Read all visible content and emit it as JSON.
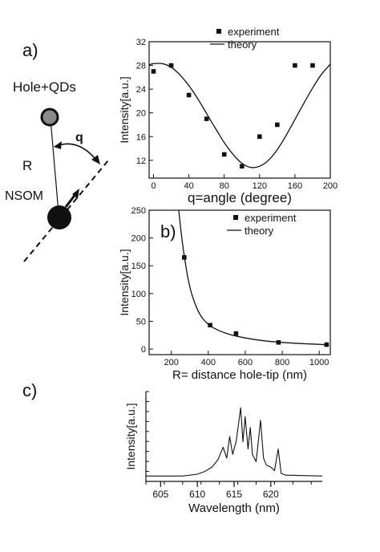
{
  "panels": {
    "a": "a)",
    "b": "b)",
    "c": "c)"
  },
  "sketch": {
    "hole_label": "Hole+QDs",
    "angle_label": "q",
    "distance_label": "R",
    "tip_label": "NSOM"
  },
  "colors": {
    "ink": "#111111",
    "hole_fill": "#8a8a8a",
    "tip_fill": "#111111"
  },
  "chart_data": [
    {
      "type": "scatter",
      "panel": "a",
      "xlabel": "q=angle (degree)",
      "ylabel": "Intensity[a.u.]",
      "xlim": [
        -5,
        200
      ],
      "ylim": [
        9,
        32
      ],
      "xticks": [
        0,
        40,
        80,
        120,
        160,
        200
      ],
      "yticks": [
        12,
        16,
        20,
        24,
        28,
        32
      ],
      "legend": [
        "experiment",
        "theory"
      ],
      "legend_position": "top-right",
      "experiment": {
        "x": [
          0,
          20,
          40,
          60,
          80,
          100,
          120,
          140,
          160,
          180
        ],
        "y": [
          27,
          28,
          23,
          19,
          13,
          11,
          16,
          18,
          28,
          28
        ]
      },
      "theory": {
        "model": "cosine",
        "x": [
          -5,
          0,
          10,
          20,
          30,
          40,
          50,
          60,
          70,
          80,
          90,
          100,
          110,
          120,
          130,
          140,
          150,
          160,
          170,
          180,
          190,
          200
        ],
        "y": [
          28.1,
          28.3,
          28.3,
          27.7,
          26.4,
          24.6,
          22.4,
          19.9,
          17.4,
          15.0,
          13.0,
          11.5,
          10.8,
          11.0,
          12.0,
          13.8,
          16.2,
          18.9,
          21.6,
          24.2,
          26.5,
          28.2
        ]
      }
    },
    {
      "type": "scatter",
      "panel": "b",
      "xlabel": "R= distance hole-tip (nm)",
      "ylabel": "Intensity[a.u.]",
      "xlim": [
        80,
        1060
      ],
      "ylim": [
        -10,
        250
      ],
      "xticks": [
        200,
        400,
        600,
        800,
        1000
      ],
      "yticks": [
        0,
        50,
        100,
        150,
        200,
        250
      ],
      "legend": [
        "experiment",
        "theory"
      ],
      "legend_position": "top-right",
      "experiment": {
        "x": [
          270,
          410,
          550,
          780,
          1040
        ],
        "y": [
          165,
          43,
          28,
          12,
          8
        ]
      },
      "theory": {
        "model": "decay",
        "x": [
          240,
          255,
          270,
          290,
          310,
          340,
          370,
          410,
          460,
          520,
          600,
          700,
          800,
          900,
          1000,
          1050
        ],
        "y": [
          250,
          205,
          168,
          128,
          100,
          72,
          55,
          42,
          33,
          26,
          20,
          15,
          12,
          10,
          8.5,
          7.5
        ]
      }
    },
    {
      "type": "line",
      "panel": "c",
      "xlabel": "Wavelength (nm)",
      "ylabel": "Intensity[a.u.]",
      "xlim": [
        603,
        627
      ],
      "ylim": [
        0,
        1
      ],
      "xticks": [
        605,
        610,
        615,
        620
      ],
      "series": [
        {
          "x": [
            603,
            608,
            610,
            611,
            612,
            612.8,
            613.5,
            614.0,
            614.4,
            614.8,
            615.3,
            615.9,
            616.2,
            616.5,
            616.9,
            617.2,
            617.5,
            618.0,
            618.6,
            619.0,
            619.4,
            620.0,
            620.5,
            621.0,
            621.4,
            622.0,
            627
          ],
          "y": [
            0.06,
            0.06,
            0.08,
            0.11,
            0.16,
            0.24,
            0.38,
            0.26,
            0.5,
            0.3,
            0.45,
            0.82,
            0.44,
            0.72,
            0.36,
            0.6,
            0.3,
            0.22,
            0.68,
            0.26,
            0.18,
            0.16,
            0.12,
            0.36,
            0.09,
            0.07,
            0.06
          ]
        }
      ]
    }
  ]
}
